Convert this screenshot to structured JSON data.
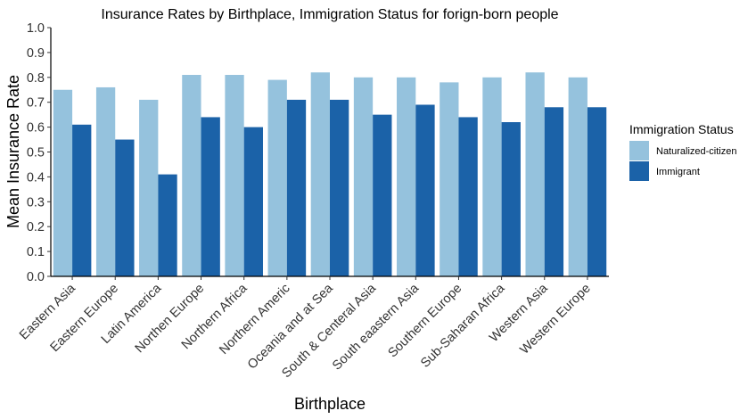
{
  "chart_data": {
    "type": "bar",
    "title": "Insurance Rates by Birthplace, Immigration Status for forign-born people",
    "xlabel": "Birthplace",
    "ylabel": "Mean Insurance Rate",
    "ylim": [
      0,
      1.0
    ],
    "yticks": [
      "0.0",
      "0.1",
      "0.2",
      "0.3",
      "0.4",
      "0.5",
      "0.6",
      "0.7",
      "0.8",
      "0.9",
      "1.0"
    ],
    "grid": false,
    "legend": {
      "title": "Immigration Status",
      "position": "right"
    },
    "categories": [
      "Eastern Asia",
      "Eastern Europe",
      "Latin America",
      "Northen Europe",
      "Northern Africa",
      "Northern Americ",
      "Oceania and at Sea",
      "South  & Centeral Asia",
      "South eaastern Asia",
      "Southern Europe",
      "Sub-Saharan Africa",
      "Western Asia",
      "Western Europe"
    ],
    "series": [
      {
        "name": "Naturalized-citizen",
        "color": "#95C2DD",
        "values": [
          0.75,
          0.76,
          0.71,
          0.81,
          0.81,
          0.79,
          0.82,
          0.8,
          0.8,
          0.78,
          0.8,
          0.82,
          0.8
        ]
      },
      {
        "name": "Immigrant",
        "color": "#1B62A8",
        "values": [
          0.61,
          0.55,
          0.41,
          0.64,
          0.6,
          0.71,
          0.71,
          0.65,
          0.69,
          0.64,
          0.62,
          0.68,
          0.68
        ]
      }
    ]
  }
}
